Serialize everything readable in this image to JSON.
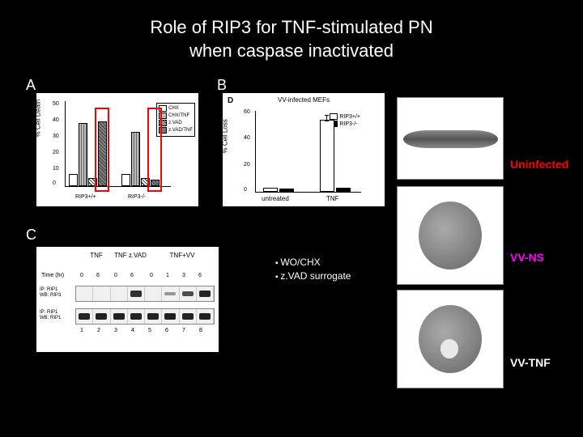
{
  "title_line1": "Role of RIP3 for TNF-stimulated PN",
  "title_line2": "when caspase inactivated",
  "panels": {
    "a": "A",
    "b": "B",
    "c": "C"
  },
  "chartA": {
    "type": "bar",
    "ylabel": "% Cell Death",
    "ylim": [
      0,
      50
    ],
    "yticks": [
      0,
      10,
      20,
      30,
      40,
      50
    ],
    "background_color": "#ffffff",
    "groups": [
      "RIP3+/+",
      "RIP3-/-"
    ],
    "series": [
      {
        "label": "CHX",
        "fill": "#ffffff",
        "pattern": "none"
      },
      {
        "label": "CHX/TNF",
        "fill": "#bbbbbb",
        "pattern": "hatch"
      },
      {
        "label": "z.VAD",
        "fill": "#ffffff",
        "pattern": "diag"
      },
      {
        "label": "z.VAD/TNF",
        "fill": "#777777",
        "pattern": "cross"
      }
    ],
    "values": {
      "RIP3+/+": [
        7,
        40,
        4,
        41
      ],
      "RIP3-/-": [
        7,
        34,
        4,
        3
      ]
    },
    "highlight_boxes": [
      {
        "group": 0,
        "bar": 3,
        "color": "#ff0000"
      },
      {
        "group": 1,
        "bar": 3,
        "color": "#ff0000"
      }
    ]
  },
  "chartB": {
    "type": "bar",
    "panel_letter": "D",
    "title": "VV-infected MEFs",
    "ylabel": "% Cell Loss",
    "ylim": [
      0,
      60
    ],
    "yticks": [
      0,
      20,
      40,
      60
    ],
    "background_color": "#ffffff",
    "categories": [
      "untreated",
      "TNF"
    ],
    "series": [
      {
        "label": "RIP3+/+",
        "fill": "#ffffff"
      },
      {
        "label": "RIP3-/-",
        "fill": "#000000"
      }
    ],
    "values": {
      "untreated": [
        2,
        1
      ],
      "TNF": [
        52,
        2
      ]
    },
    "error": {
      "TNF": [
        5,
        1
      ]
    }
  },
  "panelC": {
    "conditions": [
      "TNF",
      "TNF z.VAD",
      "TNF+VV"
    ],
    "time_label": "Time (hr)",
    "times": [
      "0",
      "6",
      "0",
      "6",
      "0",
      "1",
      "3",
      "6"
    ],
    "rows": [
      {
        "ip": "IP: RIP1",
        "wb": "WB: RIP3",
        "bands": [
          0,
          0,
          0,
          0.9,
          0,
          0.2,
          0.7,
          1.0
        ]
      },
      {
        "ip": "IP: RIP1",
        "wb": "WB: RIP1",
        "bands": [
          1,
          1,
          1,
          1,
          1,
          1,
          1,
          1
        ]
      }
    ],
    "lane_numbers": [
      "1",
      "2",
      "3",
      "4",
      "5",
      "6",
      "7",
      "8"
    ]
  },
  "bullets": {
    "item1": "WO/CHX",
    "item2": "z.VAD surrogate"
  },
  "micrographs": {
    "m1": {
      "label": "Uninfected",
      "label_color": "#ff0000"
    },
    "m2": {
      "label": "VV-NS",
      "label_color": "#ff00ff"
    },
    "m3": {
      "label": "VV-TNF",
      "label_color": "#ffffff"
    }
  }
}
